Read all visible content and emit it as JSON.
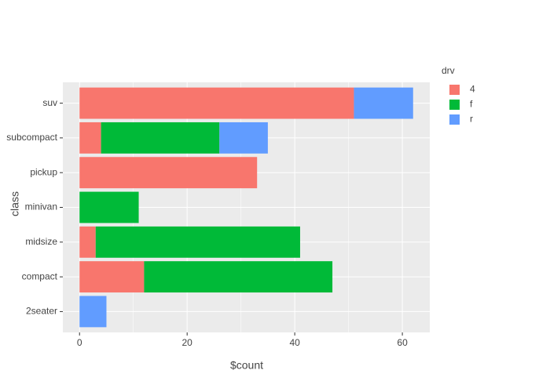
{
  "chart_data": {
    "type": "stacked-bar-horizontal",
    "x_label": "$count",
    "y_label": "class",
    "legend_title": "drv",
    "categories": [
      "2seater",
      "compact",
      "midsize",
      "minivan",
      "pickup",
      "subcompact",
      "suv"
    ],
    "series": [
      {
        "name": "4",
        "color": "#F8766D",
        "values": [
          null,
          12,
          3,
          null,
          33,
          4,
          51
        ]
      },
      {
        "name": "f",
        "color": "#00BA38",
        "values": [
          null,
          35,
          38,
          11,
          null,
          22,
          null
        ]
      },
      {
        "name": "r",
        "color": "#619CFF",
        "values": [
          5,
          null,
          null,
          null,
          null,
          9,
          11
        ]
      }
    ],
    "xlim": [
      -3.1,
      65.1
    ],
    "xticks": [
      0,
      20,
      40,
      60
    ],
    "grid": true,
    "legend": "right"
  }
}
